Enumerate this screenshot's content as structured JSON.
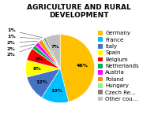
{
  "chart_data": {
    "type": "pie",
    "title": "AGRICULTURE AND RURAL DEVELOPMENT",
    "categories": [
      "Germany",
      "France",
      "Italy",
      "Spain",
      "Belgium",
      "Netherlands",
      "Austria",
      "Poland",
      "Hungary",
      "Czech Re...",
      "Other cou..."
    ],
    "values": [
      46,
      13,
      12,
      8,
      6,
      2,
      2,
      2,
      1,
      1,
      7
    ],
    "value_labels": [
      "46%",
      "13%",
      "12%",
      "8%",
      "6%",
      "2%",
      "2%",
      "2%",
      "1%",
      "1%",
      "7%"
    ],
    "colors": [
      "#FFC000",
      "#00BFFF",
      "#4472C4",
      "#FFFF00",
      "#FF0000",
      "#00B050",
      "#FF00FF",
      "#FF8C00",
      "#90EE90",
      "#808080",
      "#C0C0C0"
    ],
    "data_labels": true,
    "legend": "center left"
  }
}
